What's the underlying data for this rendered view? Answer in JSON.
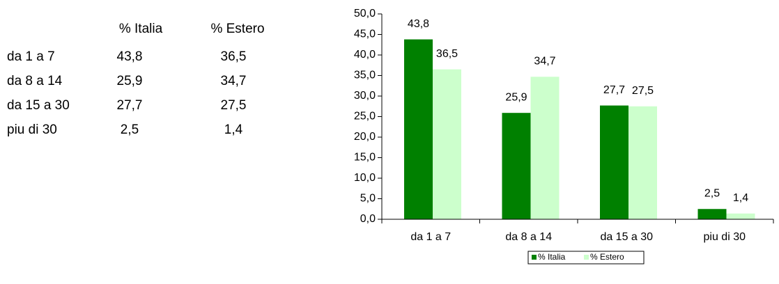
{
  "table": {
    "header": [
      "% Italia",
      "% Estero"
    ],
    "rows": [
      [
        "da 1 a 7",
        "43,8",
        "36,5"
      ],
      [
        "da 8 a 14",
        "25,9",
        "34,7"
      ],
      [
        "da 15 a 30",
        "27,7",
        "27,5"
      ],
      [
        "piu di 30",
        "2,5",
        "1,4"
      ]
    ]
  },
  "chart_data": {
    "type": "bar",
    "categories": [
      "da 1 a 7",
      "da 8 a 14",
      "da 15 a 30",
      "piu di 30"
    ],
    "series": [
      {
        "name": "% Italia",
        "color": "#008000",
        "values": [
          43.8,
          25.9,
          27.7,
          2.5
        ],
        "value_labels": [
          "43,8",
          "25,9",
          "27,7",
          "2,5"
        ]
      },
      {
        "name": "% Estero",
        "color": "#ccffcc",
        "values": [
          36.5,
          34.7,
          27.5,
          1.4
        ],
        "value_labels": [
          "36,5",
          "34,7",
          "27,5",
          "1,4"
        ]
      }
    ],
    "ylim": [
      0,
      50
    ],
    "yticks": [
      {
        "value": 0,
        "label": "0,0"
      },
      {
        "value": 5,
        "label": "5,0"
      },
      {
        "value": 10,
        "label": "10,0"
      },
      {
        "value": 15,
        "label": "15,0"
      },
      {
        "value": 20,
        "label": "20,0"
      },
      {
        "value": 25,
        "label": "25,0"
      },
      {
        "value": 30,
        "label": "30,0"
      },
      {
        "value": 35,
        "label": "35,0"
      },
      {
        "value": 40,
        "label": "40,0"
      },
      {
        "value": 45,
        "label": "45,0"
      },
      {
        "value": 50,
        "label": "50,0"
      }
    ],
    "legend": "bottom"
  }
}
